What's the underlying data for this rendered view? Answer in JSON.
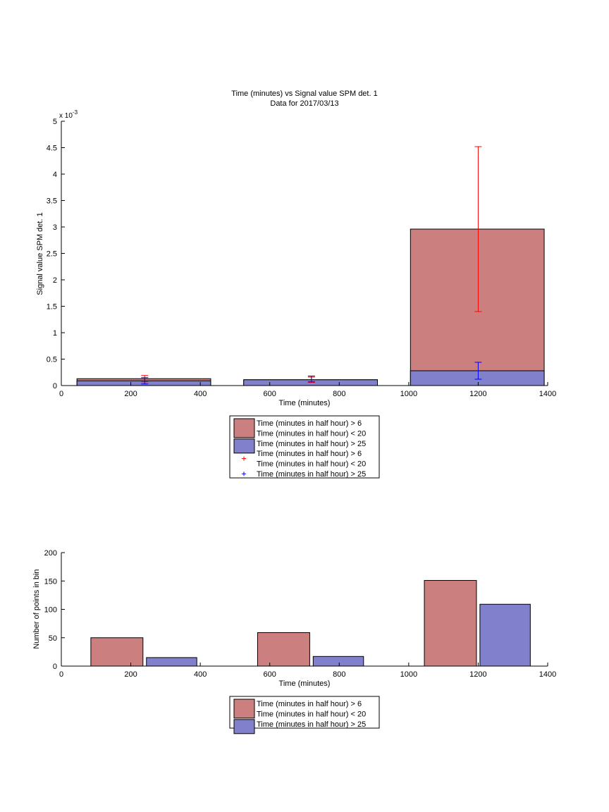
{
  "chart_data": [
    {
      "type": "bar",
      "title": "Time (minutes) vs Signal value SPM det. 1",
      "subtitle": "Data for 2017/03/13",
      "xlabel": "Time (minutes)",
      "ylabel": "Signal value SPM det. 1",
      "y_exponent_label": "x 10",
      "y_exponent_power": "-3",
      "xlim": [
        0,
        1400
      ],
      "ylim": [
        0,
        5
      ],
      "xticks": [
        "0",
        "200",
        "400",
        "600",
        "800",
        "1000",
        "1200",
        "1400"
      ],
      "yticks": [
        "0",
        "0.5",
        "1",
        "1.5",
        "2",
        "2.5",
        "3",
        "3.5",
        "4",
        "4.5",
        "5"
      ],
      "grid": false,
      "bins": [
        {
          "center": 240,
          "x0": 45,
          "x1": 430
        },
        {
          "center": 720,
          "x0": 525,
          "x1": 910
        },
        {
          "center": 1200,
          "x0": 1005,
          "x1": 1390
        }
      ],
      "series": [
        {
          "name": "Time (minutes in half hour) > 6 Time (minutes in half hour) < 20",
          "color": "#cc7f7f",
          "errorbar_color": "#ff0000",
          "values": [
            0.13,
            0.11,
            2.96
          ],
          "err_low": [
            0.07,
            0.06,
            1.4
          ],
          "err_high": [
            0.19,
            0.16,
            4.52
          ]
        },
        {
          "name": "Time (minutes in half hour) > 25",
          "color": "#8080cc",
          "errorbar_color": "#0000ff",
          "values": [
            0.09,
            0.11,
            0.28
          ],
          "err_low": [
            0.03,
            0.07,
            0.12
          ],
          "err_high": [
            0.15,
            0.18,
            0.44
          ]
        }
      ],
      "legend": {
        "placement": "below",
        "entries": [
          {
            "marker": "bar",
            "color": "#cc7f7f",
            "lines": [
              "Time (minutes in half hour) > 6",
              "Time (minutes in half hour) < 20"
            ]
          },
          {
            "marker": "bar",
            "color": "#8080cc",
            "lines": [
              "Time (minutes in half hour) > 25"
            ]
          },
          {
            "marker": "plus",
            "color": "#ff0000",
            "lines": [
              "Time (minutes in half hour) > 6",
              "Time (minutes in half hour) < 20"
            ]
          },
          {
            "marker": "plus",
            "color": "#0000ff",
            "lines": [
              "Time (minutes in half hour) > 25"
            ]
          }
        ]
      }
    },
    {
      "type": "bar",
      "xlabel": "Time (minutes)",
      "ylabel": "Number of points in bin",
      "xlim": [
        0,
        1400
      ],
      "ylim": [
        0,
        200
      ],
      "xticks": [
        "0",
        "200",
        "400",
        "600",
        "800",
        "1000",
        "1200",
        "1400"
      ],
      "yticks": [
        "0",
        "50",
        "100",
        "150",
        "200"
      ],
      "grid": false,
      "bins": [
        {
          "center": 240,
          "x0": 85,
          "x1": 235,
          "x0b": 245,
          "x1b": 390
        },
        {
          "center": 720,
          "x0": 565,
          "x1": 715,
          "x0b": 725,
          "x1b": 870
        },
        {
          "center": 1200,
          "x0": 1045,
          "x1": 1195,
          "x0b": 1205,
          "x1b": 1350
        }
      ],
      "series": [
        {
          "name": "Time (minutes in half hour) > 6 Time (minutes in half hour) < 20",
          "color": "#cc7f7f",
          "values": [
            50,
            59,
            151
          ]
        },
        {
          "name": "Time (minutes in half hour) > 25",
          "color": "#8080cc",
          "values": [
            15,
            17,
            109
          ]
        }
      ],
      "legend": {
        "placement": "below",
        "entries": [
          {
            "marker": "bar",
            "color": "#cc7f7f",
            "lines": [
              "Time (minutes in half hour) > 6",
              "Time (minutes in half hour) < 20"
            ]
          },
          {
            "marker": "bar",
            "color": "#8080cc",
            "lines": [
              "Time (minutes in half hour) > 25"
            ]
          }
        ]
      }
    }
  ]
}
